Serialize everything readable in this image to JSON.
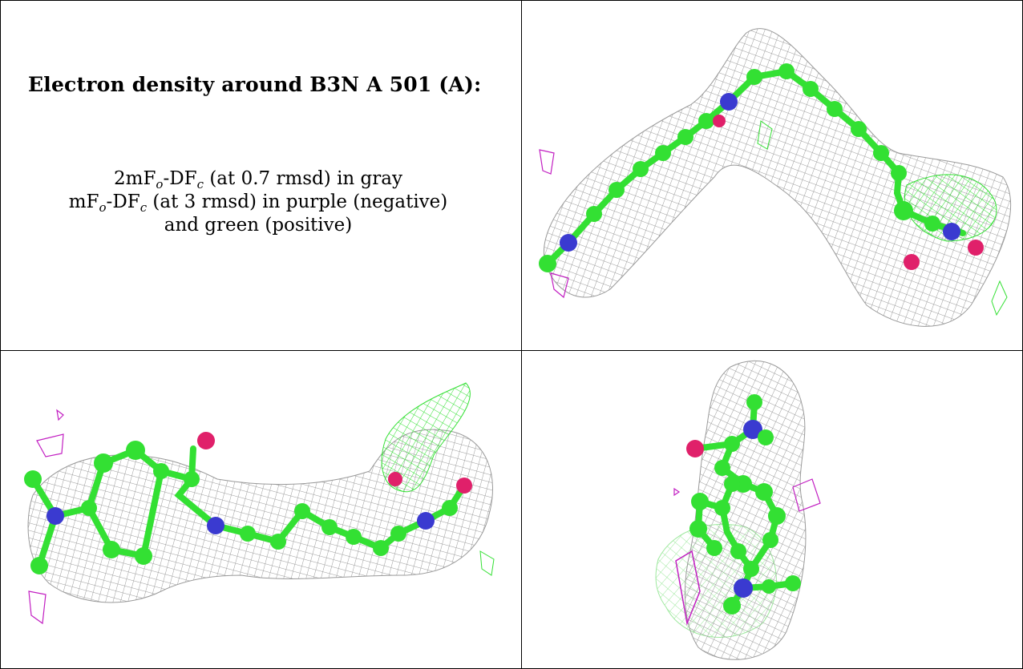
{
  "heading": "Electron density around B3N A 501 (A):",
  "map_description": {
    "line1": {
      "prefix": "2mF",
      "sub1": "o",
      "mid": "-DF",
      "sub2": "c",
      "suffix": " (at 0.7 rmsd) in gray"
    },
    "line2": {
      "prefix": "mF",
      "sub1": "o",
      "mid": "-DF",
      "sub2": "c",
      "suffix": " (at 3 rmsd) in purple (negative)"
    },
    "line3": "and green (positive)"
  },
  "panels": [
    {
      "name": "view-top-right",
      "caption": ""
    },
    {
      "name": "view-bottom-left",
      "caption": ""
    },
    {
      "name": "view-bottom-right",
      "caption": ""
    }
  ],
  "colors": {
    "mesh_2fofc": "#9a9a9a",
    "mesh_negative": "#c21fc2",
    "mesh_positive": "#33e033",
    "carbon": "#33e033",
    "nitrogen": "#3a3ad0",
    "oxygen": "#e0206a"
  }
}
